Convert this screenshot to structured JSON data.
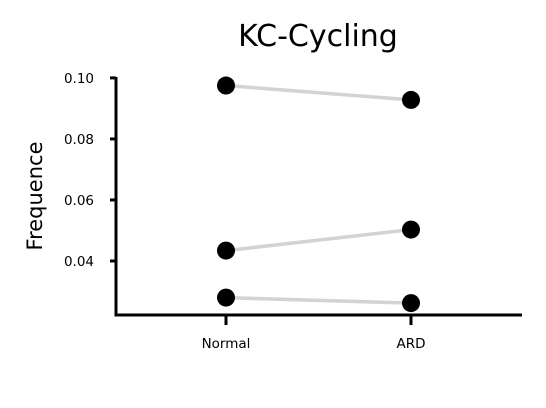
{
  "chart_data": {
    "type": "line",
    "title": "KC-Cycling",
    "xlabel": "",
    "ylabel": "Frequence",
    "categories": [
      "Normal",
      "ARD"
    ],
    "y_ticks": [
      "0.04",
      "0.06",
      "0.08",
      "0.10"
    ],
    "ylim": [
      0.0223,
      0.1003
    ],
    "grid": false,
    "legend": "none",
    "series": [
      {
        "values": [
          0.0975,
          0.0928
        ]
      },
      {
        "values": [
          0.0434,
          0.0503
        ]
      },
      {
        "values": [
          0.028,
          0.0262
        ]
      }
    ],
    "colors": {
      "line": "#d3d3d3",
      "point": "#000000",
      "axis": "#000000"
    }
  }
}
